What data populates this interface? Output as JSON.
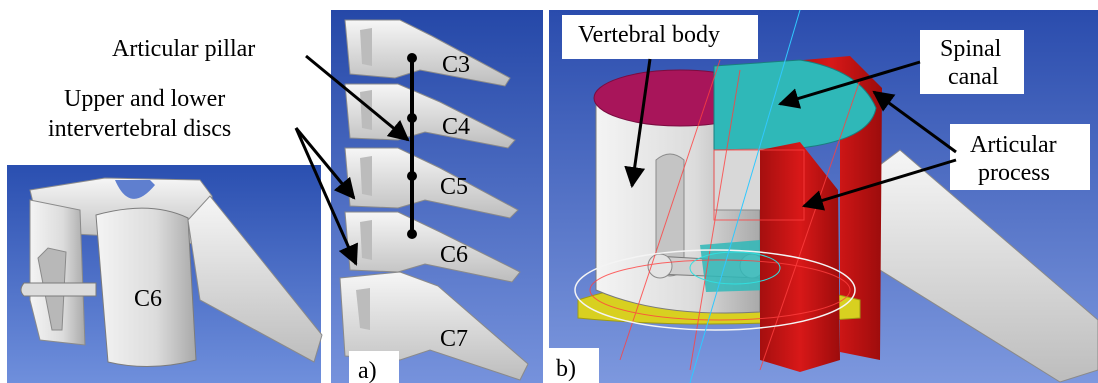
{
  "annotations": {
    "articular_pillar": "Articular pillar",
    "discs_line1": "Upper and lower",
    "discs_line2": "intervertebral discs",
    "vertebral_body": "Vertebral body",
    "spinal_canal_line1": "Spinal",
    "spinal_canal_line2": "canal",
    "articular_process_line1": "Articular",
    "articular_process_line2": "process"
  },
  "vertebra_labels": {
    "closeup": "C6",
    "c3": "C3",
    "c4": "C4",
    "c5": "C5",
    "c6": "C6",
    "c7": "C7"
  },
  "panel_labels": {
    "a": "a)",
    "b": "b)"
  },
  "colors": {
    "background_blue": "#4a6fc9",
    "bone_white": "#e6e6e6",
    "spinal_canal_teal": "#2fb8b8",
    "articular_process_red": "#c81414",
    "vertebral_body_top_magenta": "#a8155a",
    "disc_yellow": "#d8d020",
    "pillar_black": "#000000"
  }
}
